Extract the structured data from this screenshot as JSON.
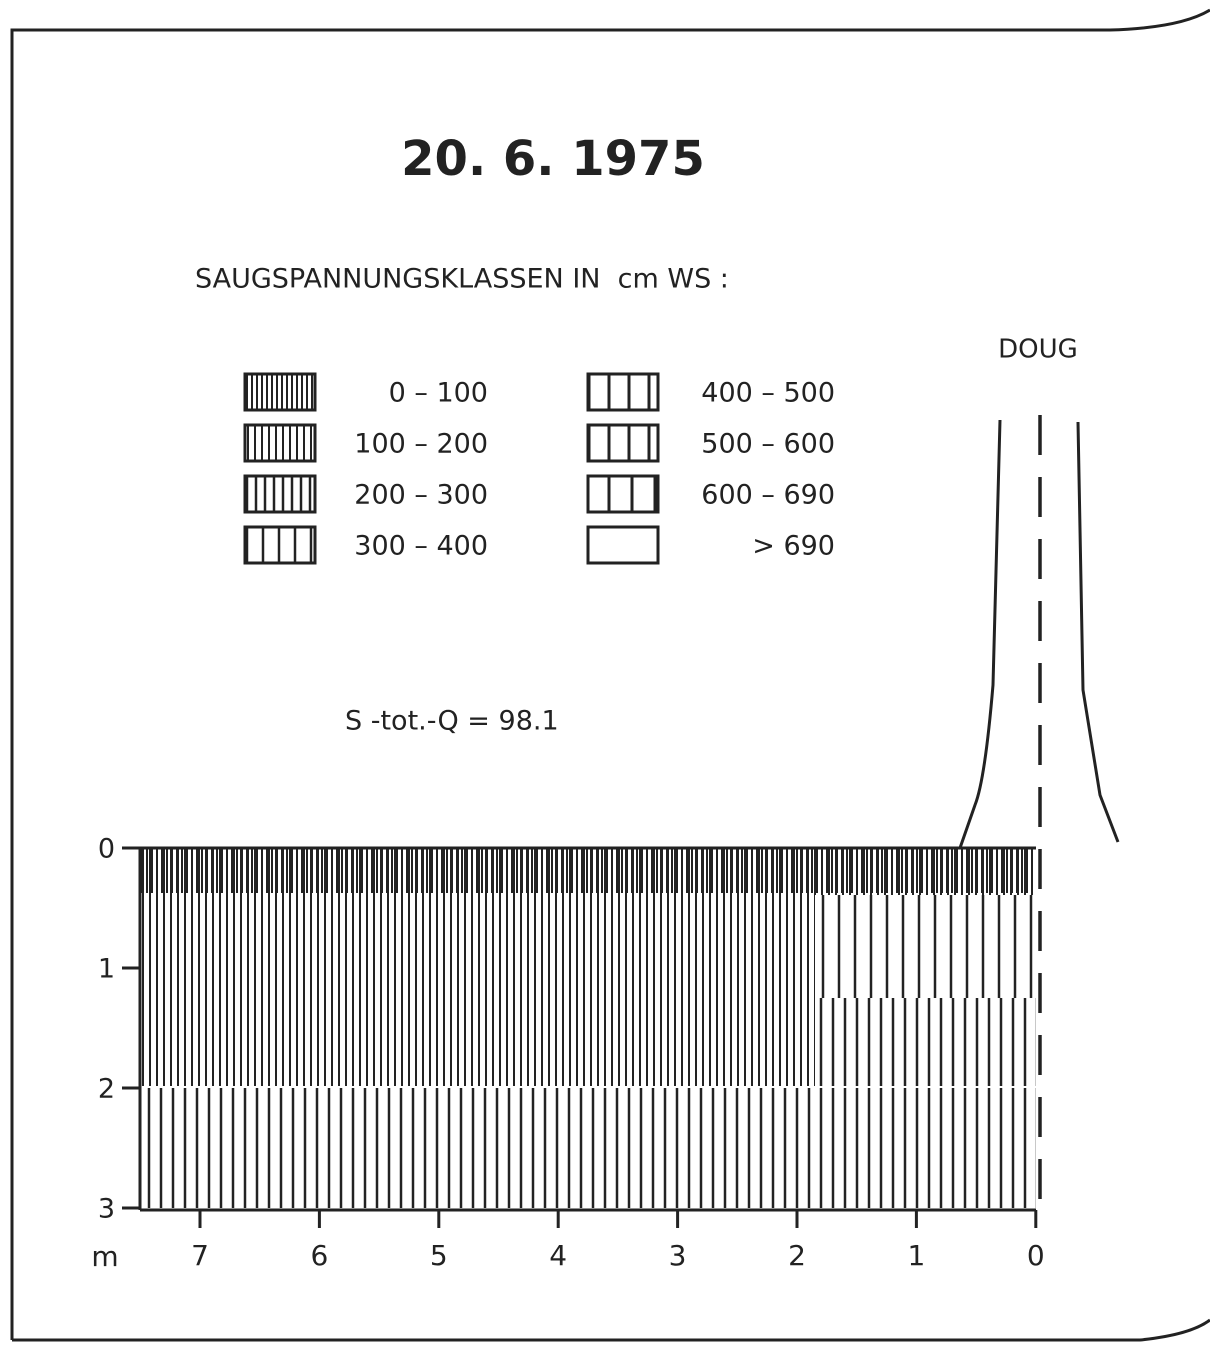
{
  "header": {
    "title": "20. 6. 1975"
  },
  "legend": {
    "title": "SAUGSPANNUNGSKLASSEN IN  cm WS :",
    "items": [
      {
        "label": "0 – 100"
      },
      {
        "label": "100 – 200"
      },
      {
        "label": "200 – 300"
      },
      {
        "label": "300 – 400"
      },
      {
        "label": "400 – 500"
      },
      {
        "label": "500 – 600"
      },
      {
        "label": "600 – 690"
      },
      {
        "label": "> 690"
      }
    ]
  },
  "tree_label": "DOUG",
  "annotation": "S -tot.-Q = 98.1",
  "axes": {
    "x_unit": "m",
    "x_ticks": [
      "7",
      "6",
      "5",
      "4",
      "3",
      "2",
      "1",
      "0"
    ],
    "y_ticks": [
      "0",
      "1",
      "2",
      "3"
    ]
  }
}
